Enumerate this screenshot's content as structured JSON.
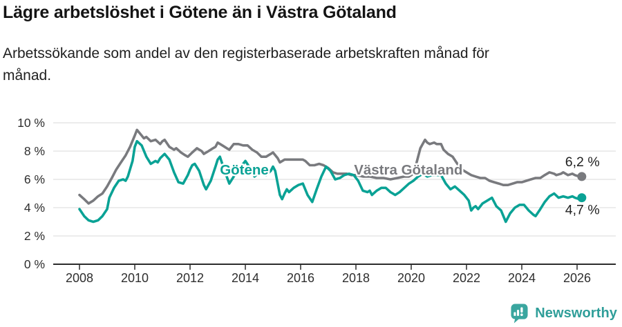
{
  "header": {
    "title": "Lägre arbetslöshet i Götene än i Västra Götaland",
    "subtitle": "Arbetssökande som andel av den registerbaserade arbetskraften månad för månad."
  },
  "chart_data": {
    "type": "line",
    "title": "Lägre arbetslöshet i Götene än i Västra Götaland",
    "subtitle": "Arbetssökande som andel av den registerbaserade arbetskraften månad för månad.",
    "unit": "%",
    "grid": true,
    "legend": "inline-labels",
    "x_axis": {
      "ticks": [
        2008,
        2010,
        2012,
        2014,
        2016,
        2018,
        2020,
        2022,
        2024,
        2026
      ],
      "tick_labels": [
        "2008",
        "2010",
        "2012",
        "2014",
        "2016",
        "2018",
        "2020",
        "2022",
        "2024",
        "2026"
      ],
      "range": [
        2007.05,
        2027.38
      ]
    },
    "y_axis": {
      "ticks": [
        0,
        2,
        4,
        6,
        8,
        10
      ],
      "tick_labels": [
        "0 %",
        "2 %",
        "4 %",
        "6 %",
        "8 %",
        "10 %"
      ],
      "range": [
        0,
        10
      ]
    },
    "colors": {
      "gridline": "#d8d8d8",
      "axis_line": "#2b2b2b",
      "axis_text": "#2e2e2e",
      "end_label_text": "#1f1f1f"
    },
    "series": [
      {
        "name": "Västra Götaland",
        "color": "#797a7e",
        "end_value": 6.2,
        "end_label": "6,2 %",
        "end_label_offset": [
          -24,
          -15
        ],
        "label_pos": [
          2017.93,
          6.34
        ],
        "points": [
          [
            2008.0,
            4.9
          ],
          [
            2008.17,
            4.6
          ],
          [
            2008.33,
            4.3
          ],
          [
            2008.5,
            4.5
          ],
          [
            2008.67,
            4.8
          ],
          [
            2008.83,
            5.0
          ],
          [
            2009.0,
            5.5
          ],
          [
            2009.17,
            6.1
          ],
          [
            2009.33,
            6.7
          ],
          [
            2009.5,
            7.2
          ],
          [
            2009.67,
            7.7
          ],
          [
            2009.83,
            8.3
          ],
          [
            2010.0,
            9.1
          ],
          [
            2010.08,
            9.5
          ],
          [
            2010.25,
            9.1
          ],
          [
            2010.33,
            8.9
          ],
          [
            2010.42,
            9.0
          ],
          [
            2010.58,
            8.7
          ],
          [
            2010.75,
            8.8
          ],
          [
            2010.92,
            8.5
          ],
          [
            2011.0,
            8.7
          ],
          [
            2011.08,
            8.8
          ],
          [
            2011.25,
            8.3
          ],
          [
            2011.42,
            8.1
          ],
          [
            2011.5,
            8.2
          ],
          [
            2011.67,
            7.9
          ],
          [
            2011.83,
            7.7
          ],
          [
            2011.92,
            7.6
          ],
          [
            2012.08,
            7.9
          ],
          [
            2012.25,
            8.2
          ],
          [
            2012.42,
            8.0
          ],
          [
            2012.5,
            7.8
          ],
          [
            2012.67,
            8.0
          ],
          [
            2012.83,
            8.2
          ],
          [
            2012.92,
            8.3
          ],
          [
            2013.0,
            8.6
          ],
          [
            2013.17,
            8.4
          ],
          [
            2013.33,
            8.2
          ],
          [
            2013.42,
            8.1
          ],
          [
            2013.58,
            8.5
          ],
          [
            2013.75,
            8.5
          ],
          [
            2013.92,
            8.4
          ],
          [
            2014.08,
            8.4
          ],
          [
            2014.25,
            8.1
          ],
          [
            2014.42,
            7.9
          ],
          [
            2014.58,
            7.6
          ],
          [
            2014.75,
            7.6
          ],
          [
            2014.92,
            7.8
          ],
          [
            2015.0,
            7.9
          ],
          [
            2015.17,
            7.5
          ],
          [
            2015.25,
            7.2
          ],
          [
            2015.42,
            7.4
          ],
          [
            2015.58,
            7.4
          ],
          [
            2015.75,
            7.4
          ],
          [
            2015.92,
            7.4
          ],
          [
            2016.08,
            7.4
          ],
          [
            2016.17,
            7.3
          ],
          [
            2016.33,
            7.0
          ],
          [
            2016.5,
            7.0
          ],
          [
            2016.67,
            7.1
          ],
          [
            2016.83,
            7.0
          ],
          [
            2017.0,
            6.8
          ],
          [
            2017.17,
            6.5
          ],
          [
            2017.33,
            6.4
          ],
          [
            2017.5,
            6.4
          ],
          [
            2017.67,
            6.4
          ],
          [
            2017.83,
            6.3
          ],
          [
            2018.0,
            6.3
          ],
          [
            2018.25,
            6.2
          ],
          [
            2018.5,
            6.2
          ],
          [
            2018.75,
            6.1
          ],
          [
            2019.0,
            6.1
          ],
          [
            2019.25,
            6.0
          ],
          [
            2019.5,
            6.1
          ],
          [
            2019.75,
            6.2
          ],
          [
            2019.92,
            6.2
          ],
          [
            2020.08,
            6.4
          ],
          [
            2020.17,
            7.0
          ],
          [
            2020.33,
            8.2
          ],
          [
            2020.5,
            8.8
          ],
          [
            2020.58,
            8.6
          ],
          [
            2020.67,
            8.5
          ],
          [
            2020.83,
            8.6
          ],
          [
            2020.92,
            8.5
          ],
          [
            2021.08,
            8.5
          ],
          [
            2021.17,
            8.1
          ],
          [
            2021.33,
            7.8
          ],
          [
            2021.5,
            7.6
          ],
          [
            2021.67,
            7.1
          ],
          [
            2021.83,
            6.7
          ],
          [
            2022.0,
            6.5
          ],
          [
            2022.17,
            6.3
          ],
          [
            2022.33,
            6.2
          ],
          [
            2022.5,
            6.1
          ],
          [
            2022.67,
            6.1
          ],
          [
            2022.83,
            5.9
          ],
          [
            2023.0,
            5.8
          ],
          [
            2023.17,
            5.7
          ],
          [
            2023.33,
            5.6
          ],
          [
            2023.5,
            5.6
          ],
          [
            2023.67,
            5.7
          ],
          [
            2023.83,
            5.8
          ],
          [
            2024.0,
            5.8
          ],
          [
            2024.17,
            5.9
          ],
          [
            2024.33,
            6.0
          ],
          [
            2024.5,
            6.1
          ],
          [
            2024.67,
            6.1
          ],
          [
            2024.83,
            6.3
          ],
          [
            2025.0,
            6.5
          ],
          [
            2025.17,
            6.4
          ],
          [
            2025.25,
            6.3
          ],
          [
            2025.42,
            6.4
          ],
          [
            2025.5,
            6.5
          ],
          [
            2025.67,
            6.3
          ],
          [
            2025.83,
            6.4
          ],
          [
            2025.92,
            6.3
          ],
          [
            2026.08,
            6.2
          ],
          [
            2026.17,
            6.2
          ]
        ]
      },
      {
        "name": "Götene",
        "color": "#0aa295",
        "end_value": 4.7,
        "end_label": "4,7 %",
        "end_label_offset": [
          -24,
          24
        ],
        "label_pos": [
          2013.08,
          6.34
        ],
        "points": [
          [
            2008.0,
            3.9
          ],
          [
            2008.17,
            3.4
          ],
          [
            2008.33,
            3.1
          ],
          [
            2008.5,
            3.0
          ],
          [
            2008.67,
            3.1
          ],
          [
            2008.83,
            3.4
          ],
          [
            2009.0,
            3.9
          ],
          [
            2009.08,
            4.7
          ],
          [
            2009.25,
            5.4
          ],
          [
            2009.42,
            5.9
          ],
          [
            2009.58,
            6.0
          ],
          [
            2009.67,
            5.9
          ],
          [
            2009.75,
            6.2
          ],
          [
            2009.92,
            7.3
          ],
          [
            2010.0,
            8.3
          ],
          [
            2010.08,
            8.7
          ],
          [
            2010.25,
            8.4
          ],
          [
            2010.42,
            7.6
          ],
          [
            2010.58,
            7.1
          ],
          [
            2010.75,
            7.3
          ],
          [
            2010.83,
            7.2
          ],
          [
            2010.92,
            7.5
          ],
          [
            2011.08,
            7.8
          ],
          [
            2011.25,
            7.4
          ],
          [
            2011.42,
            6.5
          ],
          [
            2011.58,
            5.8
          ],
          [
            2011.75,
            5.7
          ],
          [
            2011.92,
            6.3
          ],
          [
            2012.0,
            6.7
          ],
          [
            2012.08,
            7.0
          ],
          [
            2012.17,
            7.1
          ],
          [
            2012.33,
            6.6
          ],
          [
            2012.5,
            5.6
          ],
          [
            2012.58,
            5.3
          ],
          [
            2012.75,
            5.9
          ],
          [
            2012.92,
            6.9
          ],
          [
            2013.0,
            7.4
          ],
          [
            2013.08,
            7.6
          ],
          [
            2013.25,
            6.6
          ],
          [
            2013.42,
            5.7
          ],
          [
            2013.58,
            6.2
          ],
          [
            2013.75,
            6.7
          ],
          [
            2013.92,
            7.1
          ],
          [
            2014.0,
            7.3
          ],
          [
            2014.17,
            6.8
          ],
          [
            2014.33,
            6.2
          ],
          [
            2014.5,
            6.5
          ],
          [
            2014.58,
            6.4
          ],
          [
            2014.75,
            6.3
          ],
          [
            2014.92,
            6.6
          ],
          [
            2015.0,
            6.9
          ],
          [
            2015.08,
            6.6
          ],
          [
            2015.25,
            4.9
          ],
          [
            2015.33,
            4.6
          ],
          [
            2015.42,
            5.0
          ],
          [
            2015.5,
            5.3
          ],
          [
            2015.58,
            5.1
          ],
          [
            2015.75,
            5.4
          ],
          [
            2015.92,
            5.6
          ],
          [
            2016.08,
            5.7
          ],
          [
            2016.25,
            4.9
          ],
          [
            2016.42,
            4.4
          ],
          [
            2016.58,
            5.3
          ],
          [
            2016.75,
            6.2
          ],
          [
            2016.92,
            6.9
          ],
          [
            2017.08,
            6.6
          ],
          [
            2017.25,
            6.0
          ],
          [
            2017.42,
            6.1
          ],
          [
            2017.58,
            6.3
          ],
          [
            2017.75,
            6.4
          ],
          [
            2017.92,
            6.3
          ],
          [
            2018.08,
            5.9
          ],
          [
            2018.25,
            5.2
          ],
          [
            2018.42,
            5.1
          ],
          [
            2018.5,
            5.2
          ],
          [
            2018.58,
            4.9
          ],
          [
            2018.75,
            5.2
          ],
          [
            2018.92,
            5.4
          ],
          [
            2019.08,
            5.4
          ],
          [
            2019.25,
            5.1
          ],
          [
            2019.42,
            4.9
          ],
          [
            2019.58,
            5.1
          ],
          [
            2019.75,
            5.4
          ],
          [
            2019.92,
            5.7
          ],
          [
            2020.08,
            5.9
          ],
          [
            2020.25,
            6.2
          ],
          [
            2020.42,
            6.4
          ],
          [
            2020.58,
            6.2
          ],
          [
            2020.75,
            6.3
          ],
          [
            2020.92,
            6.3
          ],
          [
            2021.08,
            6.3
          ],
          [
            2021.25,
            5.7
          ],
          [
            2021.42,
            5.3
          ],
          [
            2021.58,
            5.5
          ],
          [
            2021.75,
            5.2
          ],
          [
            2021.92,
            4.9
          ],
          [
            2022.08,
            4.5
          ],
          [
            2022.17,
            3.8
          ],
          [
            2022.25,
            4.0
          ],
          [
            2022.33,
            4.1
          ],
          [
            2022.42,
            3.9
          ],
          [
            2022.58,
            4.3
          ],
          [
            2022.75,
            4.5
          ],
          [
            2022.92,
            4.7
          ],
          [
            2023.08,
            4.1
          ],
          [
            2023.25,
            3.8
          ],
          [
            2023.42,
            3.0
          ],
          [
            2023.58,
            3.6
          ],
          [
            2023.75,
            4.0
          ],
          [
            2023.92,
            4.2
          ],
          [
            2024.08,
            4.2
          ],
          [
            2024.25,
            3.8
          ],
          [
            2024.42,
            3.5
          ],
          [
            2024.5,
            3.4
          ],
          [
            2024.67,
            3.9
          ],
          [
            2024.83,
            4.4
          ],
          [
            2025.0,
            4.8
          ],
          [
            2025.17,
            5.0
          ],
          [
            2025.33,
            4.7
          ],
          [
            2025.5,
            4.8
          ],
          [
            2025.67,
            4.7
          ],
          [
            2025.83,
            4.8
          ],
          [
            2025.92,
            4.7
          ],
          [
            2026.08,
            4.6
          ],
          [
            2026.17,
            4.7
          ]
        ]
      }
    ]
  },
  "footer": {
    "brand": "Newsworthy",
    "brand_color": "#2f9e99",
    "icon": "newsworthy-bubble-chart-icon",
    "icon_color": "#3aa69f"
  }
}
